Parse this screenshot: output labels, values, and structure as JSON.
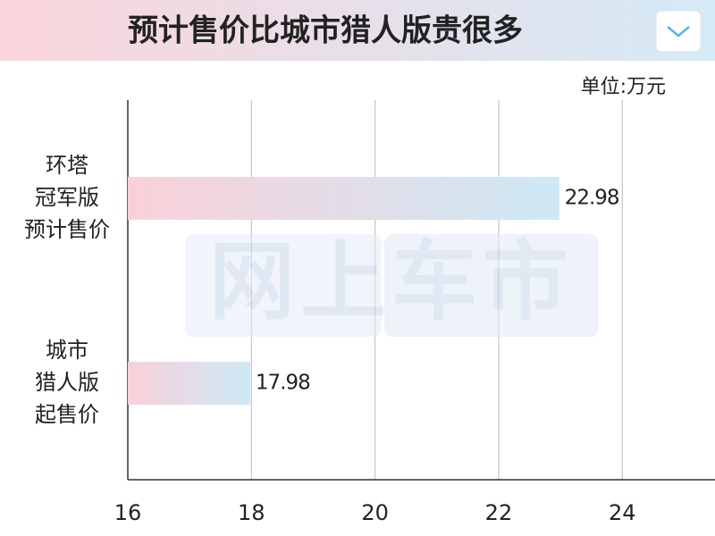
{
  "chart_data": {
    "type": "barh",
    "title": "预计售价比城市猎人版贵很多",
    "unit": "单位:万元",
    "watermark": "网上车市",
    "categories": [
      [
        "环塔",
        "冠军版",
        "预计售价"
      ],
      [
        "城市",
        "猎人版",
        "起售价"
      ]
    ],
    "values": [
      22.98,
      17.98
    ],
    "colors": [
      "#f9d0d9",
      "#cde9f5"
    ],
    "xlim": [
      16,
      25.5
    ],
    "xticks": [
      16,
      18,
      20,
      22,
      24
    ],
    "grid": true
  }
}
